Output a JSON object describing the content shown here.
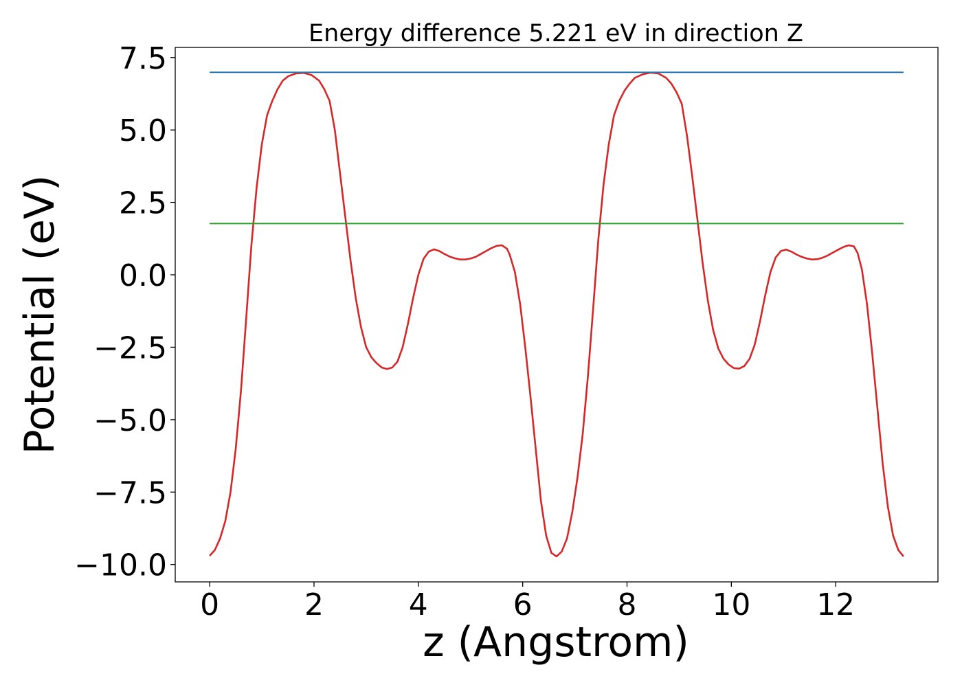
{
  "chart_data": {
    "type": "line",
    "title": "Energy difference 5.221 eV in direction Z",
    "xlabel": "z (Angstrom)",
    "ylabel": "Potential (eV)",
    "xlim": [
      -0.66,
      13.96
    ],
    "ylim": [
      -10.6,
      7.85
    ],
    "x_ticks": [
      0,
      2,
      4,
      6,
      8,
      10,
      12
    ],
    "x_tick_labels": [
      "0",
      "2",
      "4",
      "6",
      "8",
      "10",
      "12"
    ],
    "y_ticks": [
      7.5,
      5.0,
      2.5,
      0.0,
      -2.5,
      -5.0,
      -7.5,
      -10.0
    ],
    "y_tick_labels": [
      "7.5",
      "5.0",
      "2.5",
      "0.0",
      "−2.5",
      "−5.0",
      "−7.5",
      "−10.0"
    ],
    "grid": false,
    "series": [
      {
        "color": "#d62728",
        "points": [
          [
            0.0,
            -9.7
          ],
          [
            0.1,
            -9.5
          ],
          [
            0.2,
            -9.1
          ],
          [
            0.3,
            -8.5
          ],
          [
            0.4,
            -7.5
          ],
          [
            0.5,
            -6.0
          ],
          [
            0.6,
            -4.0
          ],
          [
            0.7,
            -1.5
          ],
          [
            0.8,
            1.0
          ],
          [
            0.9,
            3.0
          ],
          [
            1.0,
            4.5
          ],
          [
            1.1,
            5.5
          ],
          [
            1.2,
            6.0
          ],
          [
            1.3,
            6.4
          ],
          [
            1.4,
            6.7
          ],
          [
            1.5,
            6.85
          ],
          [
            1.65,
            6.95
          ],
          [
            1.8,
            6.97
          ],
          [
            1.95,
            6.9
          ],
          [
            2.1,
            6.7
          ],
          [
            2.2,
            6.4
          ],
          [
            2.3,
            6.0
          ],
          [
            2.4,
            5.0
          ],
          [
            2.5,
            3.5
          ],
          [
            2.6,
            2.0
          ],
          [
            2.7,
            0.5
          ],
          [
            2.8,
            -0.8
          ],
          [
            2.9,
            -1.8
          ],
          [
            3.0,
            -2.5
          ],
          [
            3.1,
            -2.85
          ],
          [
            3.2,
            -3.05
          ],
          [
            3.3,
            -3.2
          ],
          [
            3.4,
            -3.25
          ],
          [
            3.5,
            -3.2
          ],
          [
            3.6,
            -3.0
          ],
          [
            3.7,
            -2.5
          ],
          [
            3.8,
            -1.7
          ],
          [
            3.9,
            -0.8
          ],
          [
            4.0,
            0.0
          ],
          [
            4.1,
            0.55
          ],
          [
            4.2,
            0.8
          ],
          [
            4.3,
            0.88
          ],
          [
            4.4,
            0.82
          ],
          [
            4.5,
            0.72
          ],
          [
            4.6,
            0.63
          ],
          [
            4.7,
            0.57
          ],
          [
            4.8,
            0.53
          ],
          [
            4.9,
            0.53
          ],
          [
            5.0,
            0.56
          ],
          [
            5.1,
            0.62
          ],
          [
            5.2,
            0.72
          ],
          [
            5.3,
            0.82
          ],
          [
            5.4,
            0.92
          ],
          [
            5.5,
            1.0
          ],
          [
            5.6,
            1.02
          ],
          [
            5.7,
            0.9
          ],
          [
            5.75,
            0.7
          ],
          [
            5.85,
            0.1
          ],
          [
            5.95,
            -1.0
          ],
          [
            6.05,
            -2.5
          ],
          [
            6.15,
            -4.2
          ],
          [
            6.25,
            -6.0
          ],
          [
            6.35,
            -7.8
          ],
          [
            6.45,
            -9.0
          ],
          [
            6.55,
            -9.6
          ],
          [
            6.65,
            -9.72
          ],
          [
            6.75,
            -9.55
          ],
          [
            6.85,
            -9.1
          ],
          [
            6.95,
            -8.2
          ],
          [
            7.05,
            -7.0
          ],
          [
            7.15,
            -5.5
          ],
          [
            7.25,
            -3.5
          ],
          [
            7.35,
            -1.2
          ],
          [
            7.45,
            1.2
          ],
          [
            7.55,
            3.1
          ],
          [
            7.65,
            4.5
          ],
          [
            7.75,
            5.5
          ],
          [
            7.85,
            6.0
          ],
          [
            7.95,
            6.35
          ],
          [
            8.05,
            6.6
          ],
          [
            8.15,
            6.8
          ],
          [
            8.3,
            6.92
          ],
          [
            8.45,
            6.98
          ],
          [
            8.6,
            6.95
          ],
          [
            8.75,
            6.8
          ],
          [
            8.85,
            6.6
          ],
          [
            8.95,
            6.3
          ],
          [
            9.05,
            5.9
          ],
          [
            9.15,
            4.8
          ],
          [
            9.25,
            3.4
          ],
          [
            9.35,
            1.9
          ],
          [
            9.45,
            0.4
          ],
          [
            9.55,
            -0.9
          ],
          [
            9.65,
            -1.9
          ],
          [
            9.75,
            -2.55
          ],
          [
            9.85,
            -2.9
          ],
          [
            9.95,
            -3.1
          ],
          [
            10.05,
            -3.22
          ],
          [
            10.15,
            -3.24
          ],
          [
            10.25,
            -3.15
          ],
          [
            10.35,
            -2.9
          ],
          [
            10.45,
            -2.4
          ],
          [
            10.55,
            -1.6
          ],
          [
            10.65,
            -0.7
          ],
          [
            10.75,
            0.1
          ],
          [
            10.85,
            0.6
          ],
          [
            10.95,
            0.82
          ],
          [
            11.05,
            0.87
          ],
          [
            11.15,
            0.8
          ],
          [
            11.25,
            0.7
          ],
          [
            11.35,
            0.62
          ],
          [
            11.45,
            0.56
          ],
          [
            11.55,
            0.53
          ],
          [
            11.65,
            0.54
          ],
          [
            11.75,
            0.59
          ],
          [
            11.85,
            0.67
          ],
          [
            11.95,
            0.77
          ],
          [
            12.05,
            0.87
          ],
          [
            12.15,
            0.96
          ],
          [
            12.25,
            1.02
          ],
          [
            12.35,
            0.98
          ],
          [
            12.42,
            0.75
          ],
          [
            12.5,
            0.2
          ],
          [
            12.6,
            -1.0
          ],
          [
            12.7,
            -2.7
          ],
          [
            12.8,
            -4.6
          ],
          [
            12.9,
            -6.5
          ],
          [
            13.0,
            -8.0
          ],
          [
            13.1,
            -9.0
          ],
          [
            13.2,
            -9.5
          ],
          [
            13.3,
            -9.72
          ]
        ]
      },
      {
        "color": "#1f77b4",
        "points": [
          [
            0.0,
            6.99
          ],
          [
            13.3,
            6.99
          ]
        ]
      },
      {
        "color": "#2ca02c",
        "points": [
          [
            0.0,
            1.77
          ],
          [
            13.3,
            1.77
          ]
        ]
      }
    ]
  }
}
